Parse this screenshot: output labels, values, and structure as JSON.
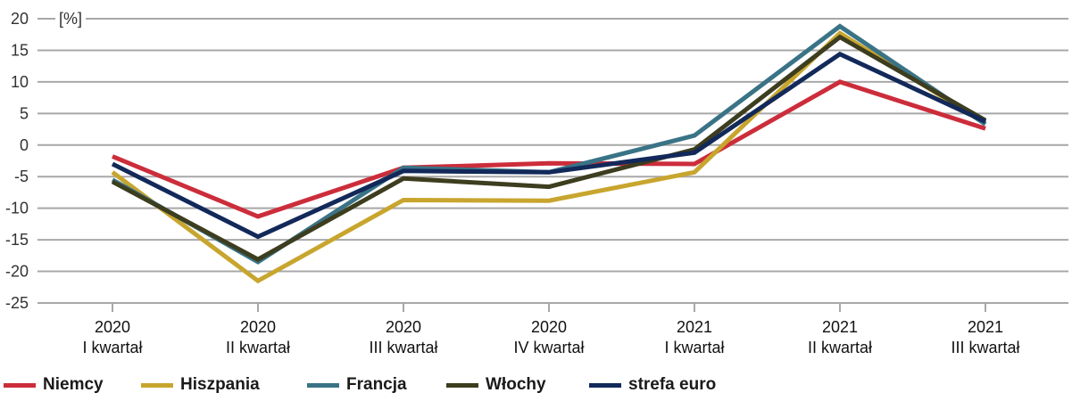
{
  "chart_data": {
    "type": "line",
    "ylabel": "[%]",
    "ylim": [
      -25,
      20
    ],
    "yticks": [
      20,
      15,
      10,
      5,
      0,
      -5,
      -10,
      -15,
      -20,
      -25
    ],
    "grid": true,
    "legend_position": "bottom",
    "categories": [
      [
        "2020",
        "I kwartał"
      ],
      [
        "2020",
        "II kwartał"
      ],
      [
        "2020",
        "III kwartał"
      ],
      [
        "2020",
        "IV kwartał"
      ],
      [
        "2021",
        "I kwartał"
      ],
      [
        "2021",
        "II kwartał"
      ],
      [
        "2021",
        "III kwartał"
      ]
    ],
    "series": [
      {
        "name": "Niemcy",
        "color": "#cc2d3b",
        "values": [
          -1.8,
          -11.3,
          -3.6,
          -2.9,
          -3.0,
          10.0,
          2.6
        ]
      },
      {
        "name": "Hiszpania",
        "color": "#c8a52e",
        "values": [
          -4.3,
          -21.5,
          -8.7,
          -8.8,
          -4.3,
          17.7,
          3.4
        ]
      },
      {
        "name": "Francja",
        "color": "#3a7386",
        "values": [
          -5.5,
          -18.5,
          -3.6,
          -4.3,
          1.5,
          18.8,
          3.3
        ]
      },
      {
        "name": "Włochy",
        "color": "#3d3d1f",
        "values": [
          -5.8,
          -18.1,
          -5.3,
          -6.6,
          -0.7,
          17.1,
          3.9
        ]
      },
      {
        "name": "strefa euro",
        "color": "#12295a",
        "values": [
          -3.0,
          -14.5,
          -4.1,
          -4.3,
          -1.2,
          14.4,
          3.7
        ]
      }
    ]
  }
}
